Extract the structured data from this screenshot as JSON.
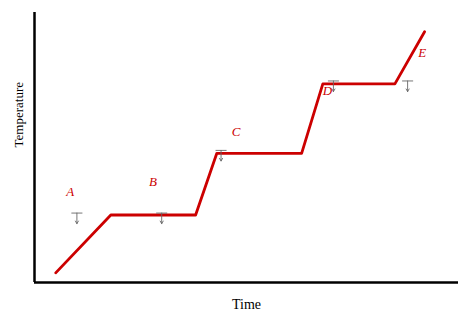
{
  "chart_data": {
    "type": "line",
    "xlabel": "Time",
    "ylabel": "Temperature",
    "x": [
      0.5,
      1.8,
      2.2,
      3.8,
      4.3,
      6.3,
      6.8,
      8.5,
      9.2
    ],
    "values": [
      0.0,
      3.0,
      3.0,
      3.0,
      6.2,
      6.2,
      9.8,
      9.8,
      12.5
    ],
    "color": "#cc0000",
    "xlim": [
      0.0,
      10.0
    ],
    "ylim": [
      -0.5,
      13.5
    ],
    "tick_labels": false,
    "grid": false,
    "annotations": [
      {
        "text": "A",
        "x": 0.75,
        "y": 4.0,
        "color": "#cc0000"
      },
      {
        "text": "B",
        "x": 2.7,
        "y": 4.5,
        "color": "#cc0000"
      },
      {
        "text": "C",
        "x": 4.65,
        "y": 7.1,
        "color": "#cc0000"
      },
      {
        "text": "D",
        "x": 6.8,
        "y": 9.2,
        "color": "#cc0000"
      },
      {
        "text": "E",
        "x": 9.05,
        "y": 11.2,
        "color": "#cc0000"
      }
    ],
    "arrows": {
      "color": "#666666",
      "items": [
        {
          "x": 1.0,
          "y": 3.1,
          "dx": 0.0,
          "dy": -0.55
        },
        {
          "x": 3.0,
          "y": 3.1,
          "dx": 0.0,
          "dy": -0.55
        },
        {
          "x": 4.4,
          "y": 6.35,
          "dx": 0.0,
          "dy": -0.55
        },
        {
          "x": 7.05,
          "y": 9.95,
          "dx": 0.0,
          "dy": -0.55
        },
        {
          "x": 8.8,
          "y": 9.95,
          "dx": 0.0,
          "dy": -0.55
        }
      ]
    }
  }
}
